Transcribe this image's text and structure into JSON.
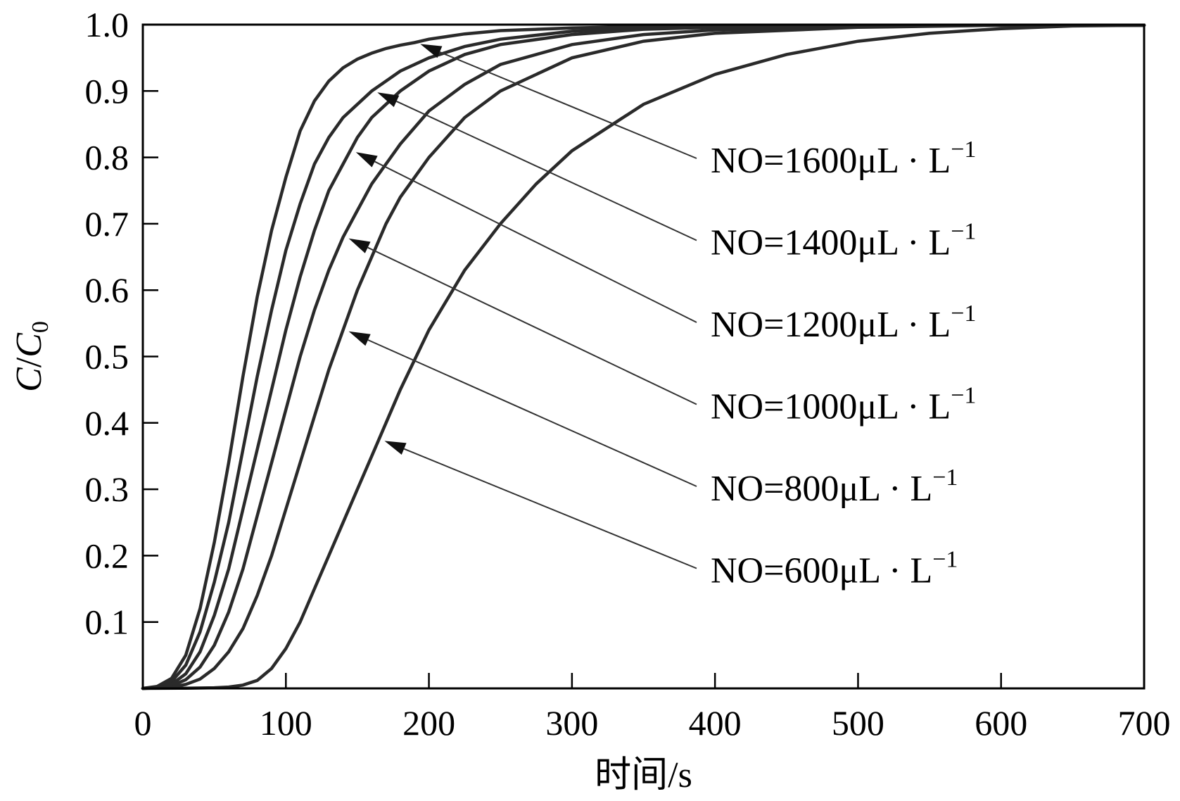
{
  "chart_data": {
    "type": "line",
    "title": "",
    "xlabel": "时间/s",
    "ylabel_parts": [
      "C",
      "/",
      "C",
      "0"
    ],
    "xlim": [
      0,
      700
    ],
    "ylim": [
      0,
      1.0
    ],
    "xticks": [
      0,
      100,
      200,
      300,
      400,
      500,
      600,
      700
    ],
    "xtick_labels": [
      "0",
      "100",
      "200",
      "300",
      "400",
      "500",
      "600",
      "700"
    ],
    "yticks": [
      0.1,
      0.2,
      0.3,
      0.4,
      0.5,
      0.6,
      0.7,
      0.8,
      0.9,
      1.0
    ],
    "ytick_labels": [
      "0.1",
      "0.2",
      "0.3",
      "0.4",
      "0.5",
      "0.6",
      "0.7",
      "0.8",
      "0.9",
      "1.0"
    ],
    "grid": false,
    "legend": "annotations-right",
    "series": [
      {
        "name": "NO=1600μL · L⁻¹",
        "label_main": "NO=1600μL · L",
        "label_sup": "−1",
        "arrow_x": 190,
        "points": [
          [
            0,
            0
          ],
          [
            10,
            0.003
          ],
          [
            20,
            0.015
          ],
          [
            30,
            0.05
          ],
          [
            40,
            0.12
          ],
          [
            50,
            0.22
          ],
          [
            60,
            0.34
          ],
          [
            70,
            0.47
          ],
          [
            80,
            0.59
          ],
          [
            90,
            0.69
          ],
          [
            100,
            0.77
          ],
          [
            110,
            0.84
          ],
          [
            120,
            0.885
          ],
          [
            130,
            0.915
          ],
          [
            140,
            0.935
          ],
          [
            150,
            0.948
          ],
          [
            160,
            0.957
          ],
          [
            170,
            0.964
          ],
          [
            180,
            0.969
          ],
          [
            190,
            0.973
          ],
          [
            200,
            0.978
          ],
          [
            225,
            0.986
          ],
          [
            250,
            0.991
          ],
          [
            300,
            0.995
          ],
          [
            350,
            0.997
          ],
          [
            400,
            0.998
          ],
          [
            500,
            0.999
          ],
          [
            600,
            0.999
          ],
          [
            700,
            0.999
          ]
        ]
      },
      {
        "name": "NO=1400μL · L⁻¹",
        "label_main": "NO=1400μL · L",
        "label_sup": "−1",
        "arrow_x": 160,
        "points": [
          [
            0,
            0
          ],
          [
            10,
            0.002
          ],
          [
            20,
            0.01
          ],
          [
            30,
            0.035
          ],
          [
            40,
            0.085
          ],
          [
            50,
            0.16
          ],
          [
            60,
            0.25
          ],
          [
            70,
            0.36
          ],
          [
            80,
            0.47
          ],
          [
            90,
            0.57
          ],
          [
            100,
            0.66
          ],
          [
            110,
            0.73
          ],
          [
            120,
            0.79
          ],
          [
            130,
            0.83
          ],
          [
            140,
            0.86
          ],
          [
            150,
            0.88
          ],
          [
            160,
            0.9
          ],
          [
            170,
            0.915
          ],
          [
            180,
            0.93
          ],
          [
            200,
            0.95
          ],
          [
            225,
            0.967
          ],
          [
            250,
            0.978
          ],
          [
            300,
            0.99
          ],
          [
            350,
            0.995
          ],
          [
            400,
            0.997
          ],
          [
            500,
            0.999
          ],
          [
            600,
            0.999
          ],
          [
            700,
            0.999
          ]
        ]
      },
      {
        "name": "NO=1200μL · L⁻¹",
        "label_main": "NO=1200μL · L",
        "label_sup": "−1",
        "arrow_x": 145,
        "points": [
          [
            0,
            0
          ],
          [
            10,
            0.001
          ],
          [
            20,
            0.006
          ],
          [
            30,
            0.022
          ],
          [
            40,
            0.055
          ],
          [
            50,
            0.11
          ],
          [
            60,
            0.18
          ],
          [
            70,
            0.27
          ],
          [
            80,
            0.36
          ],
          [
            90,
            0.45
          ],
          [
            100,
            0.54
          ],
          [
            110,
            0.62
          ],
          [
            120,
            0.69
          ],
          [
            130,
            0.75
          ],
          [
            140,
            0.79
          ],
          [
            150,
            0.83
          ],
          [
            160,
            0.86
          ],
          [
            170,
            0.88
          ],
          [
            180,
            0.9
          ],
          [
            200,
            0.93
          ],
          [
            225,
            0.955
          ],
          [
            250,
            0.97
          ],
          [
            300,
            0.985
          ],
          [
            350,
            0.993
          ],
          [
            400,
            0.996
          ],
          [
            500,
            0.998
          ],
          [
            600,
            0.999
          ],
          [
            700,
            0.999
          ]
        ]
      },
      {
        "name": "NO=1000μL · L⁻¹",
        "label_main": "NO=1000μL · L",
        "label_sup": "−1",
        "arrow_x": 140,
        "points": [
          [
            0,
            0
          ],
          [
            10,
            0.001
          ],
          [
            20,
            0.004
          ],
          [
            30,
            0.013
          ],
          [
            40,
            0.032
          ],
          [
            50,
            0.065
          ],
          [
            60,
            0.115
          ],
          [
            70,
            0.18
          ],
          [
            80,
            0.26
          ],
          [
            90,
            0.34
          ],
          [
            100,
            0.42
          ],
          [
            110,
            0.5
          ],
          [
            120,
            0.57
          ],
          [
            130,
            0.63
          ],
          [
            140,
            0.68
          ],
          [
            150,
            0.72
          ],
          [
            160,
            0.76
          ],
          [
            170,
            0.79
          ],
          [
            180,
            0.82
          ],
          [
            200,
            0.87
          ],
          [
            225,
            0.91
          ],
          [
            250,
            0.94
          ],
          [
            300,
            0.97
          ],
          [
            350,
            0.985
          ],
          [
            400,
            0.992
          ],
          [
            500,
            0.997
          ],
          [
            600,
            0.999
          ],
          [
            700,
            0.999
          ]
        ]
      },
      {
        "name": "NO=800μL · L⁻¹",
        "label_main": "NO=800μL · L",
        "label_sup": "−1",
        "arrow_x": 140,
        "points": [
          [
            0,
            0
          ],
          [
            10,
            0.0005
          ],
          [
            20,
            0.002
          ],
          [
            30,
            0.006
          ],
          [
            40,
            0.014
          ],
          [
            50,
            0.03
          ],
          [
            60,
            0.055
          ],
          [
            70,
            0.09
          ],
          [
            80,
            0.14
          ],
          [
            90,
            0.2
          ],
          [
            100,
            0.27
          ],
          [
            110,
            0.34
          ],
          [
            120,
            0.41
          ],
          [
            130,
            0.48
          ],
          [
            140,
            0.54
          ],
          [
            150,
            0.6
          ],
          [
            160,
            0.65
          ],
          [
            170,
            0.7
          ],
          [
            180,
            0.74
          ],
          [
            200,
            0.8
          ],
          [
            225,
            0.86
          ],
          [
            250,
            0.9
          ],
          [
            300,
            0.95
          ],
          [
            350,
            0.975
          ],
          [
            400,
            0.987
          ],
          [
            500,
            0.996
          ],
          [
            600,
            0.999
          ],
          [
            700,
            0.999
          ]
        ]
      },
      {
        "name": "NO=600μL · L⁻¹",
        "label_main": "NO=600μL · L",
        "label_sup": "−1",
        "arrow_x": 165,
        "points": [
          [
            0,
            0
          ],
          [
            30,
            0.0003
          ],
          [
            50,
            0.001
          ],
          [
            60,
            0.002
          ],
          [
            70,
            0.005
          ],
          [
            80,
            0.012
          ],
          [
            90,
            0.03
          ],
          [
            100,
            0.06
          ],
          [
            110,
            0.1
          ],
          [
            120,
            0.15
          ],
          [
            130,
            0.2
          ],
          [
            140,
            0.25
          ],
          [
            150,
            0.3
          ],
          [
            160,
            0.35
          ],
          [
            170,
            0.4
          ],
          [
            180,
            0.45
          ],
          [
            200,
            0.54
          ],
          [
            225,
            0.63
          ],
          [
            250,
            0.7
          ],
          [
            275,
            0.76
          ],
          [
            300,
            0.81
          ],
          [
            350,
            0.88
          ],
          [
            400,
            0.925
          ],
          [
            450,
            0.955
          ],
          [
            500,
            0.975
          ],
          [
            550,
            0.987
          ],
          [
            600,
            0.994
          ],
          [
            650,
            0.998
          ],
          [
            700,
            0.999
          ]
        ]
      }
    ]
  }
}
